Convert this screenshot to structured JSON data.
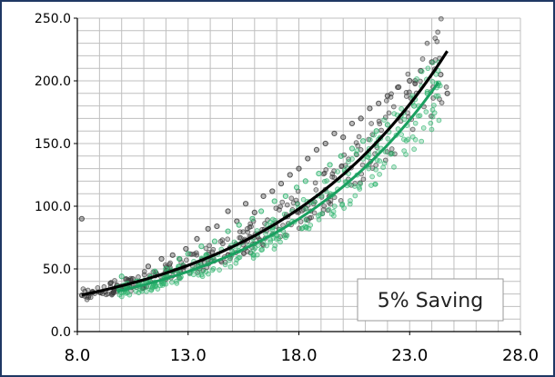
{
  "chart_data": {
    "type": "scatter",
    "title": "",
    "xlabel": "",
    "ylabel": "",
    "xlim": [
      8.0,
      28.0
    ],
    "ylim": [
      0.0,
      250.0
    ],
    "x_ticks": [
      "8.0",
      "13.0",
      "18.0",
      "23.0",
      "28.0"
    ],
    "y_ticks": [
      "0.0",
      "50.0",
      "100.0",
      "150.0",
      "200.0",
      "250.0"
    ],
    "grid": true,
    "annotation": "5% Saving",
    "series": [
      {
        "color": "#3a3a3a",
        "marker": "open-circle",
        "x_range": [
          8.2,
          24.8
        ],
        "points": [
          [
            8.2,
            90
          ],
          [
            10.5,
            42
          ],
          [
            11.2,
            52
          ],
          [
            11.8,
            58
          ],
          [
            12.3,
            61
          ],
          [
            12.9,
            66
          ],
          [
            13.4,
            74
          ],
          [
            13.9,
            82
          ],
          [
            14.3,
            84
          ],
          [
            14.8,
            96
          ],
          [
            15.2,
            88
          ],
          [
            15.6,
            102
          ],
          [
            16.0,
            95
          ],
          [
            16.4,
            108
          ],
          [
            16.8,
            112
          ],
          [
            17.2,
            118
          ],
          [
            17.6,
            125
          ],
          [
            18.0,
            130
          ],
          [
            18.4,
            138
          ],
          [
            18.8,
            145
          ],
          [
            19.2,
            150
          ],
          [
            19.6,
            158
          ],
          [
            20.0,
            155
          ],
          [
            20.4,
            166
          ],
          [
            20.8,
            170
          ],
          [
            21.2,
            178
          ],
          [
            21.6,
            182
          ],
          [
            22.0,
            188
          ],
          [
            22.5,
            195
          ],
          [
            23.0,
            200
          ],
          [
            23.5,
            208
          ],
          [
            24.0,
            215
          ],
          [
            24.4,
            205
          ],
          [
            24.7,
            190
          ]
        ],
        "trend": {
          "x": [
            8.2,
            24.7
          ],
          "coef_a": 10.64,
          "coef_b": 0.1233
        }
      },
      {
        "color": "#2fb36e",
        "marker": "open-circle",
        "x_range": [
          9.8,
          24.5
        ],
        "points": [
          [
            10.0,
            44
          ],
          [
            10.8,
            40
          ],
          [
            11.5,
            48
          ],
          [
            12.0,
            50
          ],
          [
            12.6,
            58
          ],
          [
            13.0,
            62
          ],
          [
            13.6,
            68
          ],
          [
            14.2,
            72
          ],
          [
            14.8,
            80
          ],
          [
            15.3,
            85
          ],
          [
            15.9,
            90
          ],
          [
            16.3,
            96
          ],
          [
            16.9,
            104
          ],
          [
            17.4,
            108
          ],
          [
            17.9,
            115
          ],
          [
            18.3,
            120
          ],
          [
            18.9,
            126
          ],
          [
            19.4,
            133
          ],
          [
            19.9,
            140
          ],
          [
            20.4,
            146
          ],
          [
            20.9,
            152
          ],
          [
            21.5,
            160
          ],
          [
            22.0,
            165
          ],
          [
            22.6,
            172
          ],
          [
            23.2,
            180
          ],
          [
            23.8,
            190
          ],
          [
            24.3,
            198
          ]
        ],
        "trend": {
          "x": [
            9.8,
            24.3
          ],
          "coef_a": 9.33,
          "coef_b": 0.1259
        }
      }
    ]
  },
  "colors": {
    "frame": "#1f3864",
    "grid": "#bfbfbf",
    "axis": "#000000",
    "trend_black": "#000000",
    "trend_green": "#1aa060"
  }
}
